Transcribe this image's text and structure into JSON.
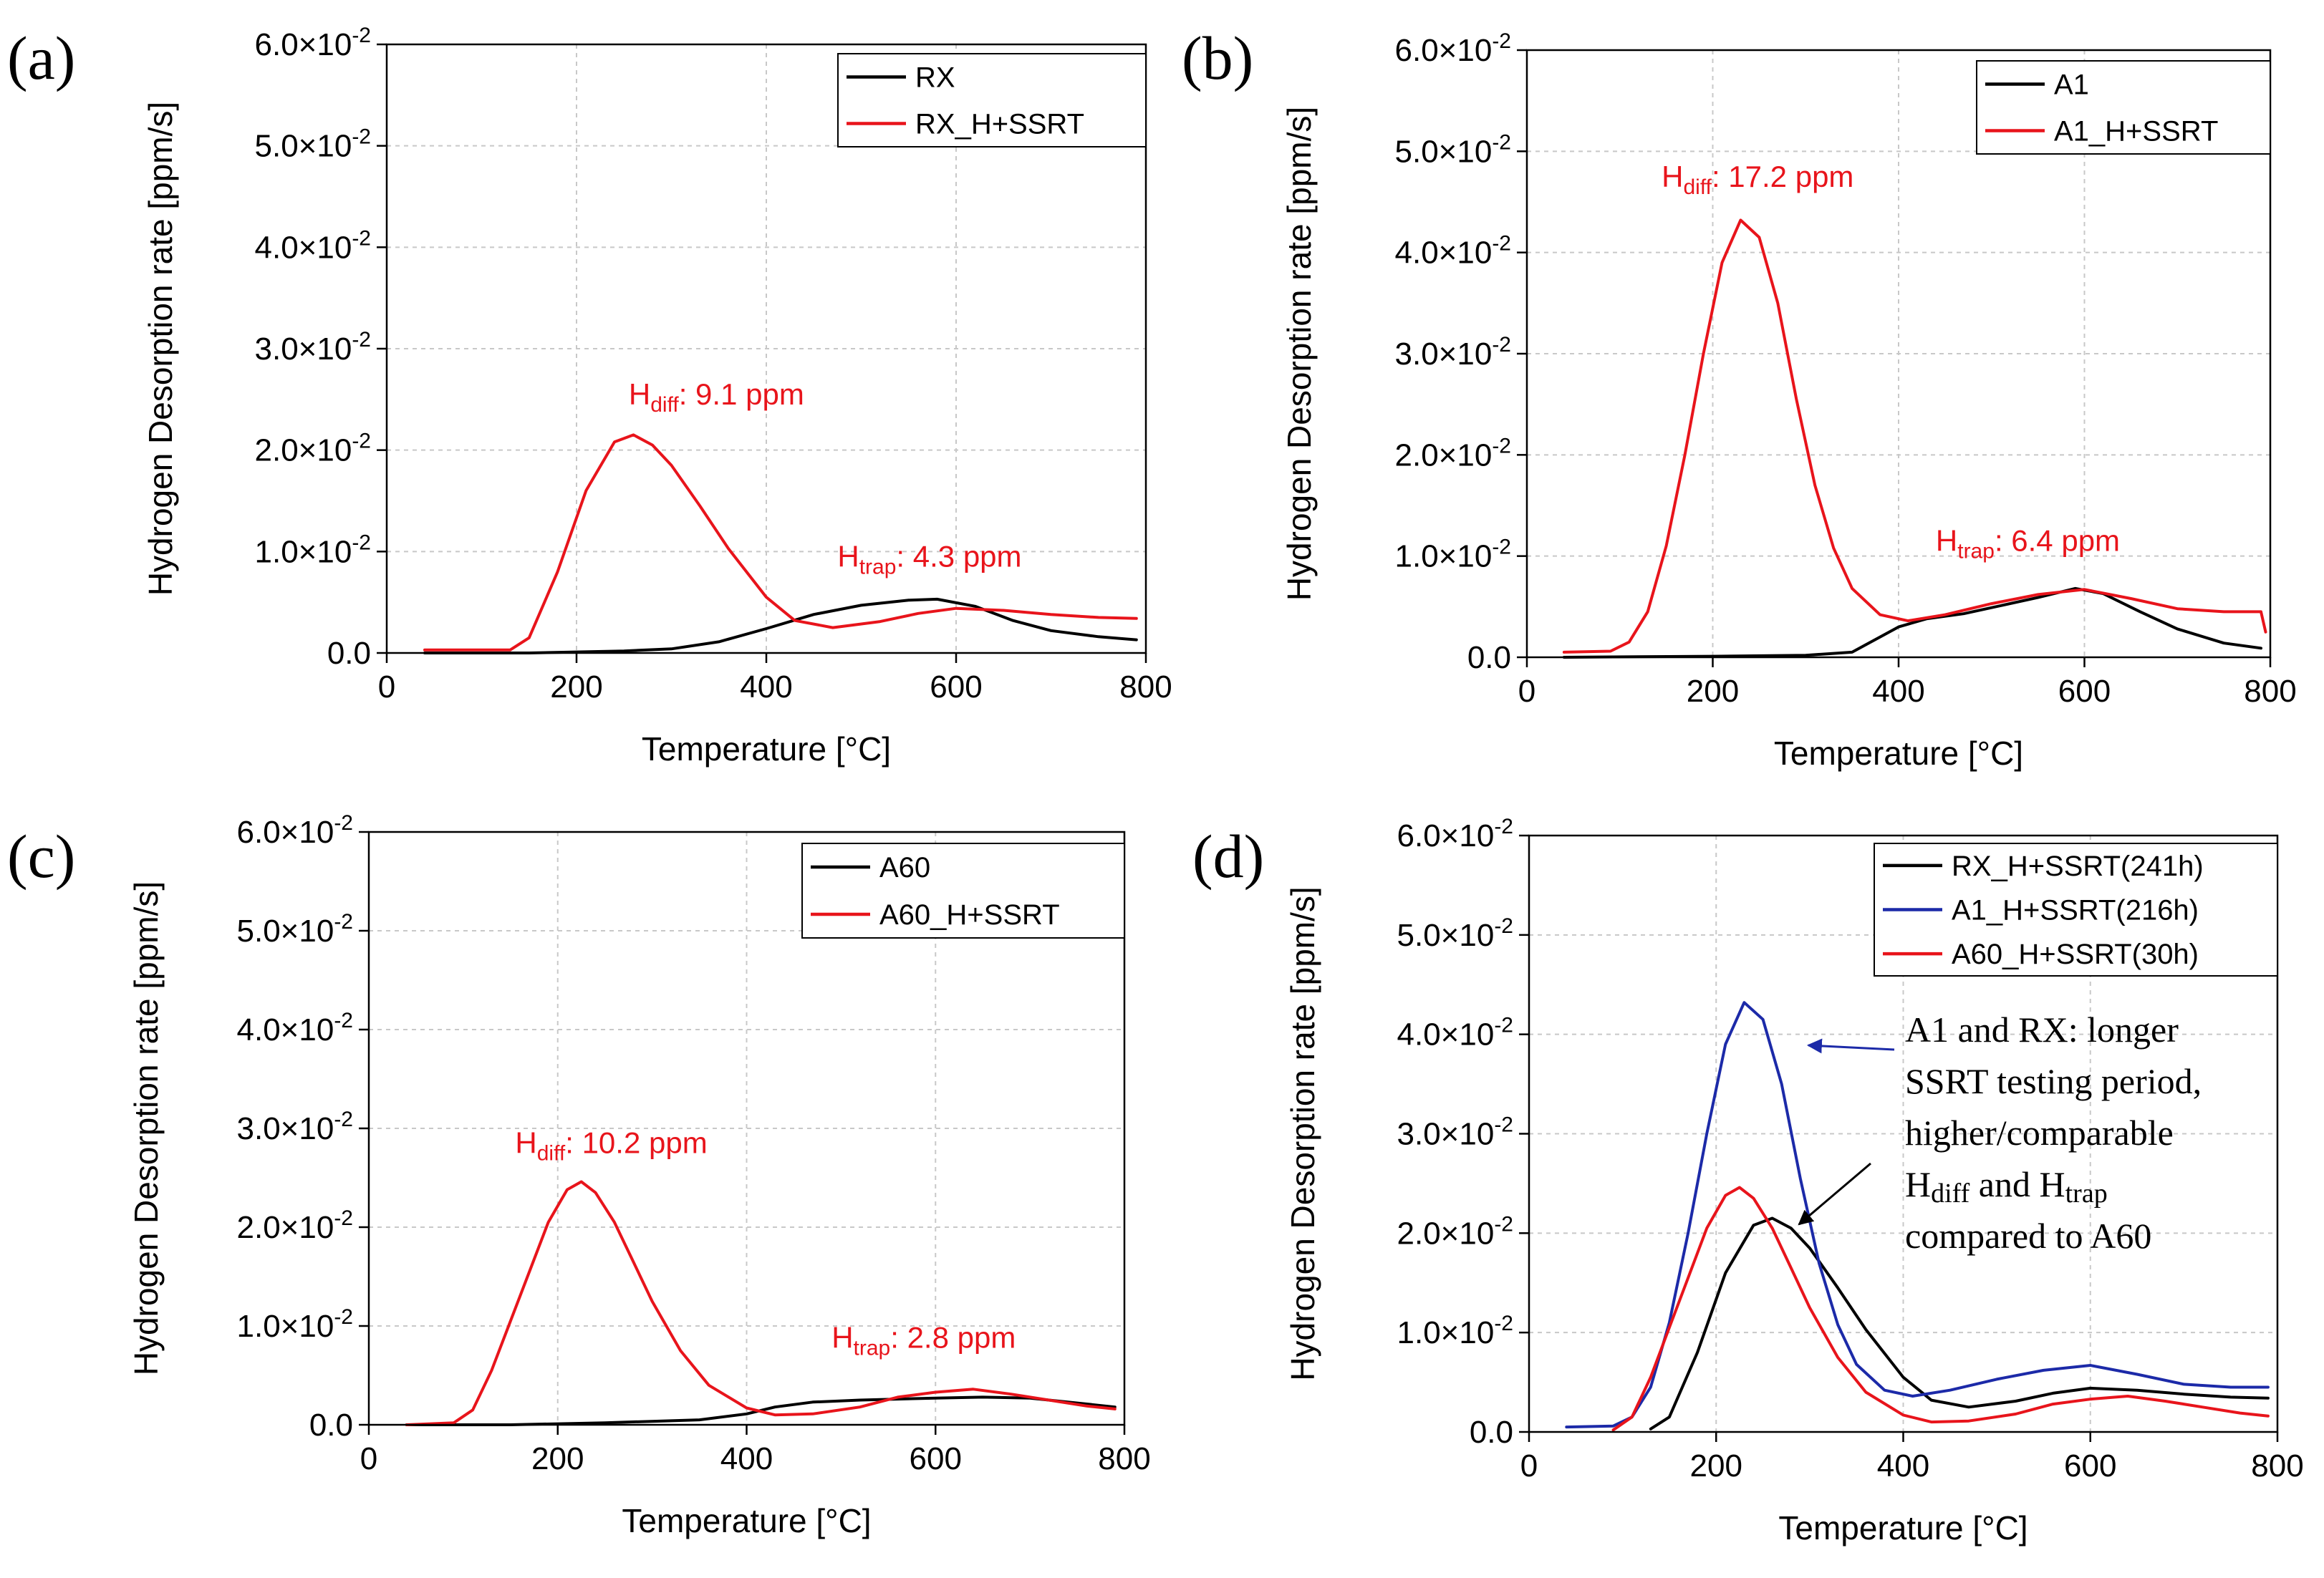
{
  "chart_data": [
    {
      "panel_label": "(a)",
      "type": "line",
      "xlabel": "Temperature [°C]",
      "ylabel": "Hydrogen Desorption rate [ppm/s]",
      "xlim": [
        0,
        800
      ],
      "ylim": [
        0,
        0.06
      ],
      "xticks": [
        "0",
        "200",
        "400",
        "600",
        "800"
      ],
      "yticks": [
        {
          "mant": "0.0",
          "exp": ""
        },
        {
          "mant": "1.0×10",
          "exp": "-2"
        },
        {
          "mant": "2.0×10",
          "exp": "-2"
        },
        {
          "mant": "3.0×10",
          "exp": "-2"
        },
        {
          "mant": "4.0×10",
          "exp": "-2"
        },
        {
          "mant": "5.0×10",
          "exp": "-2"
        },
        {
          "mant": "6.0×10",
          "exp": "-2"
        }
      ],
      "legend": [
        "RX",
        "RX_H+SSRT"
      ],
      "annotations": [
        {
          "main": "H",
          "sub": "diff",
          "rest": ": 9.1 ppm",
          "x": 255,
          "y": 0.0245
        },
        {
          "main": "H",
          "sub": "trap",
          "rest": ": 4.3 ppm",
          "x": 475,
          "y": 0.0085
        }
      ],
      "series": [
        {
          "name": "RX",
          "color": "#000000",
          "x": [
            40,
            150,
            250,
            300,
            350,
            400,
            450,
            500,
            550,
            580,
            620,
            660,
            700,
            750,
            790
          ],
          "y": [
            0.0,
            0.0,
            0.0002,
            0.0004,
            0.0011,
            0.0024,
            0.0038,
            0.0047,
            0.0052,
            0.0053,
            0.0046,
            0.0032,
            0.0022,
            0.0016,
            0.0013
          ]
        },
        {
          "name": "RX_H+SSRT",
          "color": "#e8141b",
          "x": [
            40,
            130,
            150,
            180,
            210,
            240,
            260,
            280,
            300,
            330,
            360,
            400,
            430,
            470,
            520,
            560,
            600,
            650,
            700,
            750,
            790
          ],
          "y": [
            0.0003,
            0.0003,
            0.0015,
            0.008,
            0.016,
            0.0208,
            0.0215,
            0.0205,
            0.0185,
            0.0145,
            0.0103,
            0.0055,
            0.0032,
            0.0025,
            0.0031,
            0.0039,
            0.0044,
            0.0042,
            0.0038,
            0.0035,
            0.0034
          ]
        }
      ]
    },
    {
      "panel_label": "(b)",
      "type": "line",
      "xlabel": "Temperature [°C]",
      "ylabel": "Hydrogen Desorption rate [ppm/s]",
      "xlim": [
        0,
        800
      ],
      "ylim": [
        0,
        0.06
      ],
      "xticks": [
        "0",
        "200",
        "400",
        "600",
        "800"
      ],
      "yticks": [
        {
          "mant": "0.0",
          "exp": ""
        },
        {
          "mant": "1.0×10",
          "exp": "-2"
        },
        {
          "mant": "2.0×10",
          "exp": "-2"
        },
        {
          "mant": "3.0×10",
          "exp": "-2"
        },
        {
          "mant": "4.0×10",
          "exp": "-2"
        },
        {
          "mant": "5.0×10",
          "exp": "-2"
        },
        {
          "mant": "6.0×10",
          "exp": "-2"
        }
      ],
      "legend": [
        "A1",
        "A1_H+SSRT"
      ],
      "annotations": [
        {
          "main": "H",
          "sub": "diff",
          "rest": ": 17.2 ppm",
          "x": 145,
          "y": 0.0465
        },
        {
          "main": "H",
          "sub": "trap",
          "rest": ": 6.4 ppm",
          "x": 440,
          "y": 0.0105
        }
      ],
      "series": [
        {
          "name": "A1",
          "color": "#000000",
          "x": [
            40,
            200,
            300,
            350,
            370,
            400,
            430,
            470,
            500,
            550,
            590,
            620,
            660,
            700,
            750,
            790
          ],
          "y": [
            0.0,
            0.0001,
            0.0002,
            0.0005,
            0.0015,
            0.003,
            0.0038,
            0.0043,
            0.0049,
            0.0059,
            0.0068,
            0.0063,
            0.0045,
            0.0028,
            0.0014,
            0.0009
          ]
        },
        {
          "name": "A1_H+SSRT",
          "color": "#e8141b",
          "x": [
            40,
            90,
            110,
            130,
            150,
            170,
            190,
            210,
            230,
            250,
            270,
            290,
            310,
            330,
            350,
            380,
            410,
            450,
            500,
            550,
            600,
            650,
            700,
            750,
            790,
            795
          ],
          "y": [
            0.0005,
            0.0006,
            0.0015,
            0.0045,
            0.011,
            0.02,
            0.03,
            0.039,
            0.0432,
            0.0415,
            0.035,
            0.0255,
            0.017,
            0.0108,
            0.0068,
            0.0042,
            0.0036,
            0.0042,
            0.0053,
            0.0062,
            0.0067,
            0.0058,
            0.0048,
            0.0045,
            0.0045,
            0.0025
          ]
        }
      ]
    },
    {
      "panel_label": "(c)",
      "type": "line",
      "xlabel": "Temperature [°C]",
      "ylabel": "Hydrogen Desorption rate [ppm/s]",
      "xlim": [
        0,
        800
      ],
      "ylim": [
        0,
        0.06
      ],
      "xticks": [
        "0",
        "200",
        "400",
        "600",
        "800"
      ],
      "yticks": [
        {
          "mant": "0.0",
          "exp": ""
        },
        {
          "mant": "1.0×10",
          "exp": "-2"
        },
        {
          "mant": "2.0×10",
          "exp": "-2"
        },
        {
          "mant": "3.0×10",
          "exp": "-2"
        },
        {
          "mant": "4.0×10",
          "exp": "-2"
        },
        {
          "mant": "5.0×10",
          "exp": "-2"
        },
        {
          "mant": "6.0×10",
          "exp": "-2"
        }
      ],
      "legend": [
        "A60",
        "A60_H+SSRT"
      ],
      "annotations": [
        {
          "main": "H",
          "sub": "diff",
          "rest": ": 10.2 ppm",
          "x": 155,
          "y": 0.0275
        },
        {
          "main": "H",
          "sub": "trap",
          "rest": ": 2.8 ppm",
          "x": 490,
          "y": 0.0078
        }
      ],
      "series": [
        {
          "name": "A60",
          "color": "#000000",
          "x": [
            40,
            150,
            250,
            350,
            400,
            430,
            470,
            520,
            560,
            600,
            650,
            700,
            750,
            790
          ],
          "y": [
            0.0,
            0.0,
            0.0002,
            0.0005,
            0.0011,
            0.0018,
            0.0023,
            0.0025,
            0.0026,
            0.0027,
            0.0028,
            0.0027,
            0.0022,
            0.0018
          ]
        },
        {
          "name": "A60_H+SSRT",
          "color": "#e8141b",
          "x": [
            40,
            90,
            110,
            130,
            150,
            170,
            190,
            210,
            225,
            240,
            260,
            280,
            300,
            330,
            360,
            400,
            430,
            470,
            520,
            560,
            600,
            640,
            680,
            720,
            760,
            790
          ],
          "y": [
            0.0,
            0.0002,
            0.0015,
            0.0055,
            0.0105,
            0.0155,
            0.0205,
            0.0238,
            0.0246,
            0.0235,
            0.0205,
            0.0165,
            0.0125,
            0.0075,
            0.004,
            0.0017,
            0.001,
            0.0011,
            0.0018,
            0.0028,
            0.0033,
            0.0036,
            0.0031,
            0.0025,
            0.0019,
            0.0016
          ]
        }
      ]
    },
    {
      "panel_label": "(d)",
      "type": "line",
      "xlabel": "Temperature [°C]",
      "ylabel": "Hydrogen Desorption rate [ppm/s]",
      "xlim": [
        0,
        800
      ],
      "ylim": [
        0,
        0.06
      ],
      "xticks": [
        "0",
        "200",
        "400",
        "600",
        "800"
      ],
      "yticks": [
        {
          "mant": "0.0",
          "exp": ""
        },
        {
          "mant": "1.0×10",
          "exp": "-2"
        },
        {
          "mant": "2.0×10",
          "exp": "-2"
        },
        {
          "mant": "3.0×10",
          "exp": "-2"
        },
        {
          "mant": "4.0×10",
          "exp": "-2"
        },
        {
          "mant": "5.0×10",
          "exp": "-2"
        },
        {
          "mant": "6.0×10",
          "exp": "-2"
        }
      ],
      "legend": [
        "RX_H+SSRT(241h)",
        "A1_H+SSRT(216h)",
        "A60_H+SSRT(30h)"
      ],
      "note_lines": [
        {
          "text": "A1 and RX: longer"
        },
        {
          "text": "SSRT testing period,"
        },
        {
          "text": "higher/comparable"
        },
        {
          "parts": [
            {
              "t": "H"
            },
            {
              "t": "diff",
              "sub": true
            },
            {
              "t": " and H"
            },
            {
              "t": "trap",
              "sub": true
            }
          ]
        },
        {
          "text": "compared to A60"
        }
      ],
      "series": [
        {
          "name": "RX_H+SSRT(241h)",
          "color": "#000000",
          "x": [
            130,
            150,
            180,
            210,
            240,
            260,
            280,
            300,
            330,
            360,
            400,
            430,
            470,
            520,
            560,
            600,
            650,
            700,
            750,
            790
          ],
          "y": [
            0.0003,
            0.0015,
            0.008,
            0.016,
            0.0208,
            0.0215,
            0.0205,
            0.0185,
            0.0145,
            0.0103,
            0.0055,
            0.0032,
            0.0025,
            0.0031,
            0.0039,
            0.0044,
            0.0042,
            0.0038,
            0.0035,
            0.0034
          ]
        },
        {
          "name": "A1_H+SSRT(216h)",
          "color": "#1c2aa8",
          "x": [
            40,
            90,
            110,
            130,
            150,
            170,
            190,
            210,
            230,
            250,
            270,
            290,
            310,
            330,
            350,
            380,
            410,
            450,
            500,
            550,
            600,
            650,
            700,
            750,
            790
          ],
          "y": [
            0.0005,
            0.0006,
            0.0015,
            0.0045,
            0.011,
            0.02,
            0.03,
            0.039,
            0.0432,
            0.0415,
            0.035,
            0.0255,
            0.017,
            0.0108,
            0.0068,
            0.0042,
            0.0036,
            0.0042,
            0.0053,
            0.0062,
            0.0067,
            0.0058,
            0.0048,
            0.0045,
            0.0045
          ]
        },
        {
          "name": "A60_H+SSRT(30h)",
          "color": "#e8141b",
          "x": [
            90,
            110,
            130,
            150,
            170,
            190,
            210,
            225,
            240,
            260,
            280,
            300,
            330,
            360,
            400,
            430,
            470,
            520,
            560,
            600,
            640,
            680,
            720,
            760,
            790
          ],
          "y": [
            0.0002,
            0.0015,
            0.0055,
            0.0105,
            0.0155,
            0.0205,
            0.0238,
            0.0246,
            0.0235,
            0.0205,
            0.0165,
            0.0125,
            0.0075,
            0.004,
            0.0017,
            0.001,
            0.0011,
            0.0018,
            0.0028,
            0.0033,
            0.0036,
            0.0031,
            0.0025,
            0.0019,
            0.0016
          ]
        }
      ]
    }
  ]
}
